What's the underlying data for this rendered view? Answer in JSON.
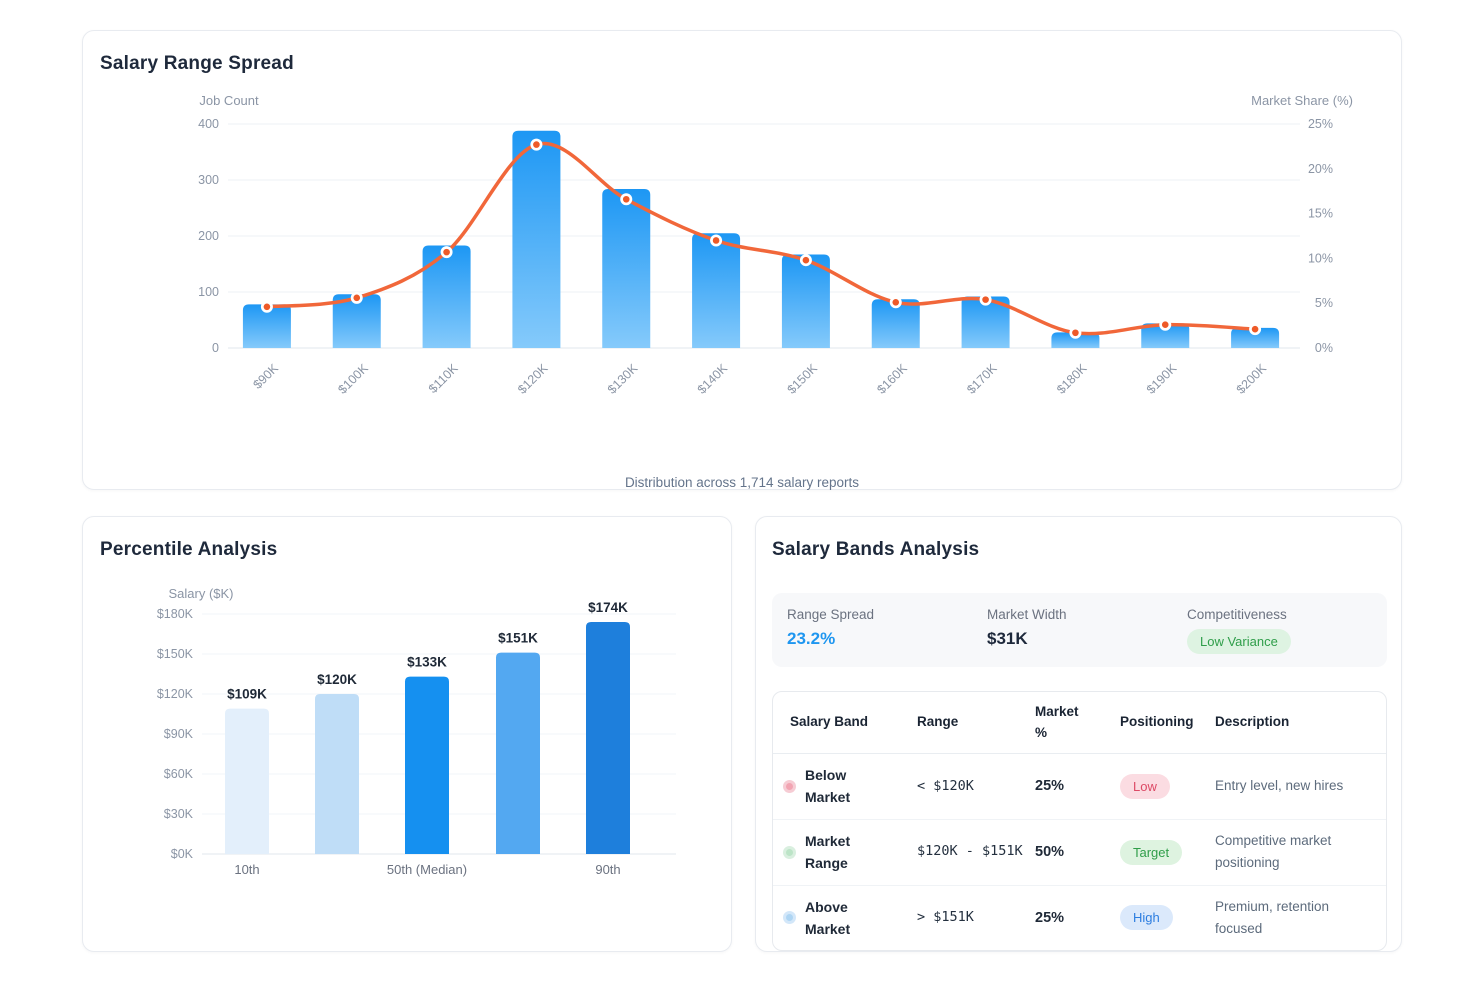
{
  "colors": {
    "bar_gradient_top": "#1d97f4",
    "bar_gradient_bottom": "#85cafb",
    "line": "#f1673a",
    "marker": "#ee5a28",
    "grid": "#eef1f5",
    "axis": "#e2e7ed",
    "tick_text": "#8b95a5",
    "accent": "#1e96f0"
  },
  "chart_data": [
    {
      "type": "combo-bar-line",
      "title": "Salary Range Spread",
      "subtitle": "Distribution across 1,714 salary reports",
      "categories": [
        "$90K",
        "$100K",
        "$110K",
        "$120K",
        "$130K",
        "$140K",
        "$150K",
        "$160K",
        "$170K",
        "$180K",
        "$190K",
        "$200K"
      ],
      "series": [
        {
          "name": "Job Count",
          "type": "bar",
          "values": [
            78,
            96,
            183,
            388,
            284,
            205,
            167,
            87,
            92,
            28,
            44,
            36
          ]
        },
        {
          "name": "Market Share (%)",
          "type": "line",
          "values": [
            4.6,
            5.6,
            10.7,
            22.7,
            16.6,
            12.0,
            9.8,
            5.1,
            5.4,
            1.7,
            2.6,
            2.1
          ]
        }
      ],
      "left_axis": {
        "title": "Job Count",
        "min": 0,
        "max": 400,
        "ticks": [
          "0",
          "100",
          "200",
          "300",
          "400"
        ]
      },
      "right_axis": {
        "title": "Market Share (%)",
        "min": 0,
        "max": 25,
        "ticks": [
          "0%",
          "5%",
          "10%",
          "15%",
          "20%",
          "25%"
        ]
      },
      "grid": true,
      "legend": false
    },
    {
      "type": "bar",
      "title": "Percentile Analysis",
      "categories": [
        "10th",
        "",
        "50th (Median)",
        "",
        "90th"
      ],
      "values": [
        109,
        120,
        133,
        151,
        174
      ],
      "data_labels": [
        "$109K",
        "$120K",
        "$133K",
        "$151K",
        "$174K"
      ],
      "bar_colors": [
        "#e3effb",
        "#bfddf7",
        "#1590f0",
        "#53a8f1",
        "#1e7fdc"
      ],
      "xlabel": "",
      "ylabel": "Salary ($K)",
      "y_ticks": [
        "$0K",
        "$30K",
        "$60K",
        "$90K",
        "$120K",
        "$150K",
        "$180K"
      ],
      "ylim": [
        0,
        180
      ],
      "grid": true,
      "legend": false
    }
  ],
  "cards": {
    "bands": {
      "title": "Salary Bands Analysis",
      "stats": [
        {
          "label": "Range Spread",
          "value": "23.2%",
          "style": "accent"
        },
        {
          "label": "Market Width",
          "value": "$31K",
          "style": "plain"
        },
        {
          "label": "Competitiveness",
          "value": "Low Variance",
          "style": "badge",
          "badge_bg": "#def3e2",
          "badge_color": "#2f9e4a"
        }
      ],
      "table": {
        "headers": [
          "Salary Band",
          "Range",
          "Market %",
          "Positioning",
          "Description"
        ],
        "rows": [
          {
            "band": "Below Market",
            "range": "< $120K",
            "market": "25%",
            "positioning": "Low",
            "pill_bg": "#fbdce2",
            "pill_color": "#dd4a66",
            "dot": "#f6ccd4",
            "dot_inner": "#f2a4b2",
            "description": "Entry level, new hires"
          },
          {
            "band": "Market Range",
            "range": "$120K - $151K",
            "market": "50%",
            "positioning": "Target",
            "pill_bg": "#def3e0",
            "pill_color": "#2f9e49",
            "dot": "#d9efdf",
            "dot_inner": "#bce4c7",
            "description": "Competitive market positioning"
          },
          {
            "band": "Above Market",
            "range": "> $151K",
            "market": "25%",
            "positioning": "High",
            "pill_bg": "#dbe9fb",
            "pill_color": "#2b7de0",
            "dot": "#d3e7f9",
            "dot_inner": "#aed5f3",
            "description": "Premium, retention focused"
          }
        ]
      }
    }
  }
}
